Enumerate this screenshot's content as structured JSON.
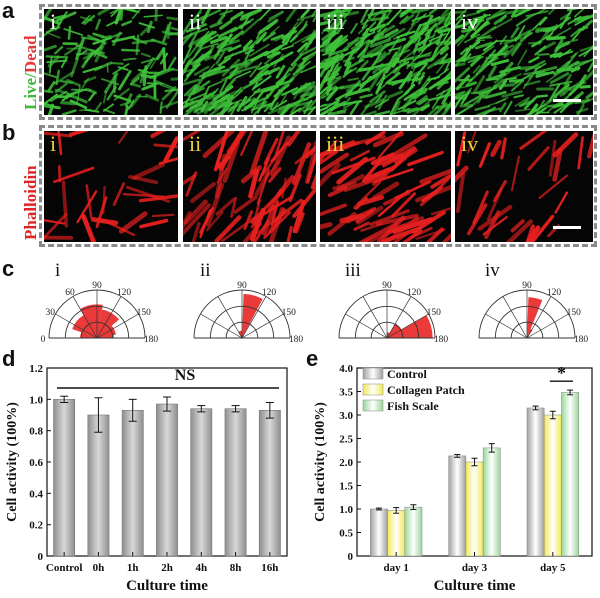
{
  "panel_labels": {
    "a": "a",
    "b": "b",
    "c": "c",
    "d": "d",
    "e": "e"
  },
  "row_a": {
    "label_live": "Live",
    "label_sep": "/",
    "label_dead": "Dead",
    "colors": {
      "live": "#3fb83a",
      "dead": "#e23a3a"
    },
    "images": [
      "i",
      "ii",
      "iii",
      "iv"
    ]
  },
  "row_b": {
    "label": "Phalloidin",
    "color": "#e02424",
    "images": [
      "i",
      "ii",
      "iii",
      "iv"
    ]
  },
  "polar": [
    {
      "label": "i",
      "ticks": [
        "0",
        "30",
        "60",
        "90",
        "120",
        "150",
        "180"
      ],
      "orientation": "isotropic"
    },
    {
      "label": "ii",
      "ticks": [
        "90",
        "120",
        "150",
        "180"
      ],
      "orientation": "narrow ~90-110"
    },
    {
      "label": "iii",
      "ticks": [
        "90",
        "120",
        "150",
        "180"
      ],
      "orientation": "~150-180"
    },
    {
      "label": "iv",
      "ticks": [
        "90",
        "120",
        "150",
        "180"
      ],
      "orientation": "~90-110"
    }
  ],
  "chart_data": [
    {
      "type": "bar",
      "panel": "d",
      "categories": [
        "Control",
        "0h",
        "1h",
        "2h",
        "4h",
        "8h",
        "16h"
      ],
      "values": [
        1.0,
        0.9,
        0.93,
        0.97,
        0.94,
        0.94,
        0.93
      ],
      "errors": [
        0.02,
        0.11,
        0.07,
        0.045,
        0.02,
        0.02,
        0.05
      ],
      "xlabel": "Culture time",
      "ylabel": "Cell activity (100%)",
      "ylim": [
        0,
        1.2
      ],
      "yticks": [
        "0",
        "0.2",
        "0.4",
        "0.6",
        "0.8",
        "1.0",
        "1.2"
      ],
      "annotation": "NS",
      "color": "#a6a6a6"
    },
    {
      "type": "bar",
      "panel": "e",
      "categories": [
        "day 1",
        "day 3",
        "day 5"
      ],
      "series": [
        {
          "name": "Control",
          "values": [
            1.0,
            2.13,
            3.15
          ],
          "errors": [
            0.02,
            0.03,
            0.04
          ],
          "color": "#a0a0a0"
        },
        {
          "name": "Collagen Patch",
          "values": [
            0.97,
            2.0,
            3.0
          ],
          "errors": [
            0.06,
            0.08,
            0.08
          ],
          "color": "#f2ea55"
        },
        {
          "name": "Fish Scale",
          "values": [
            1.04,
            2.3,
            3.48
          ],
          "errors": [
            0.05,
            0.09,
            0.05
          ],
          "color": "#9ad79a"
        }
      ],
      "xlabel": "Culture time",
      "ylabel": "Cell activity (100%)",
      "ylim": [
        0,
        4.0
      ],
      "yticks": [
        "0",
        "0.5",
        "1.0",
        "1.5",
        "2.0",
        "2.5",
        "3.0",
        "3.5",
        "4.0"
      ],
      "annotation": "*",
      "legend": "top-left"
    }
  ]
}
